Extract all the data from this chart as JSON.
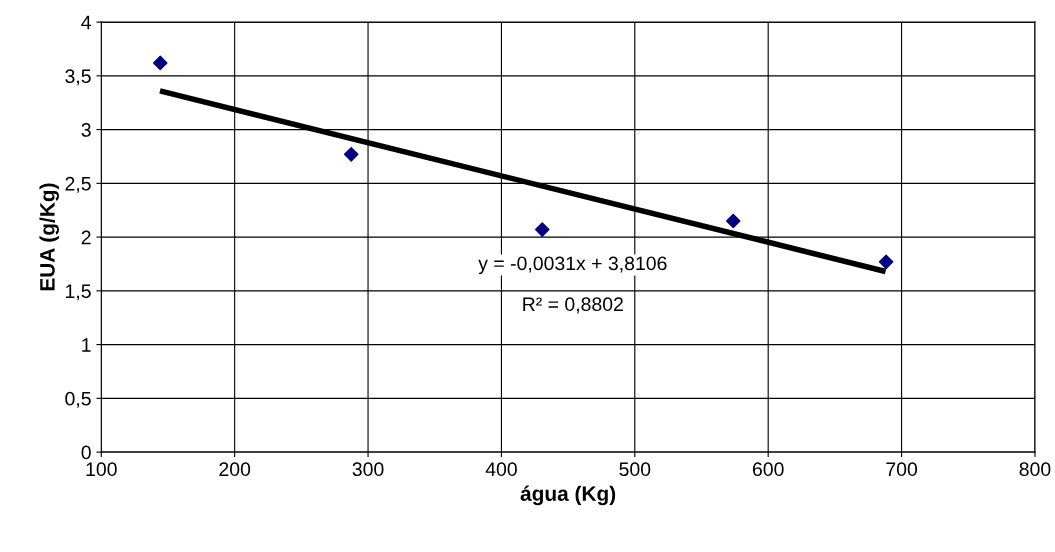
{
  "chart_data": {
    "type": "scatter",
    "xlabel": "água (Kg)",
    "ylabel": "EUA (g/Kg)",
    "series": [
      {
        "color": "#000080",
        "marker": "diamond",
        "x": [
          144.2,
          287.4,
          430.6,
          573.8,
          688.4
        ],
        "values": [
          3.62,
          2.77,
          2.07,
          2.15,
          1.77
        ]
      },
      {
        "type": "line",
        "color": "#000000",
        "marker": "none",
        "x": [
          144,
          688
        ],
        "values": [
          3.36,
          1.68
        ]
      }
    ],
    "xlim": [
      100,
      800
    ],
    "xticks": [
      100,
      200,
      300,
      400,
      500,
      600,
      700,
      800
    ],
    "ylim": [
      0,
      4
    ],
    "yticks": [
      0,
      {
        "value": 0.5,
        "label": "0,5"
      },
      1,
      {
        "value": 1.5,
        "label": "1,5"
      },
      2,
      {
        "value": 2.5,
        "label": "2,5"
      },
      3,
      {
        "value": 3.5,
        "label": "3,5"
      },
      4
    ],
    "grid": true,
    "annotations": [
      "y = -0,0031x + 3,8106",
      "R² = 0,8802"
    ]
  }
}
